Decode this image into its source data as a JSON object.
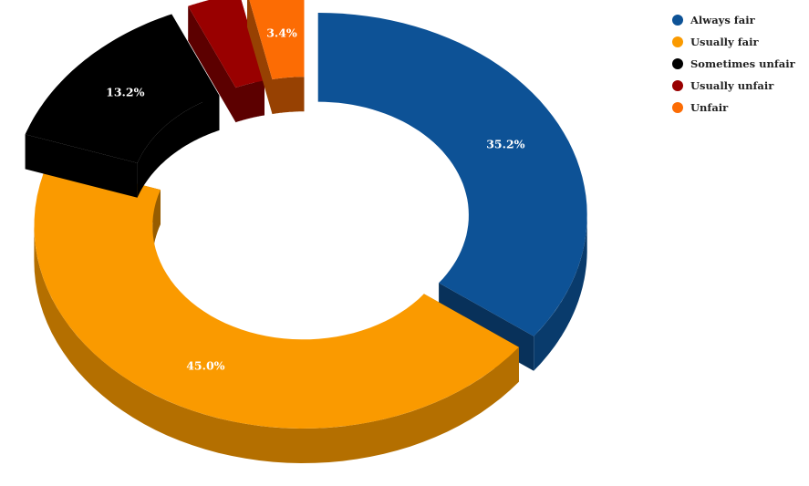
{
  "chart_data": {
    "type": "pie",
    "variant": "3d-exploded-donut",
    "title": "",
    "categories": [
      "Always fair",
      "Usually fair",
      "Sometimes unfair",
      "Usually unfair",
      "Unfair"
    ],
    "values": [
      35.2,
      45.0,
      13.2,
      3.2,
      3.4
    ],
    "data_labels": [
      "35.2%",
      "45.0%",
      "13.2%",
      "",
      "3.4%"
    ],
    "colors": [
      "#0d5296",
      "#fa9a00",
      "#000000",
      "#990000",
      "#fc6c04"
    ],
    "legend_position": "top-right"
  }
}
